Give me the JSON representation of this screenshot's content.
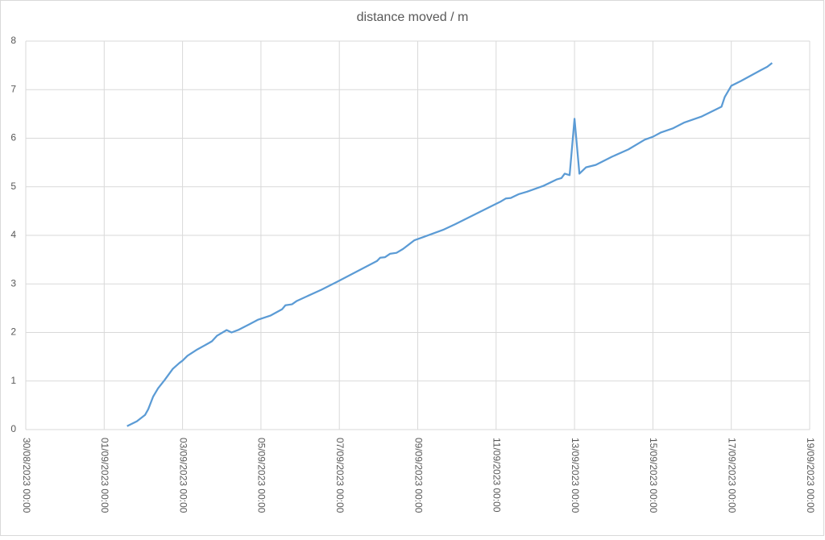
{
  "chart_data": {
    "type": "line",
    "title": "distance moved / m",
    "color": "#5b9bd5",
    "grid": true,
    "x": [
      "2023-09-01 14:00",
      "2023-09-01 20:00",
      "2023-09-02 01:00",
      "2023-09-02 03:00",
      "2023-09-02 06:00",
      "2023-09-02 09:00",
      "2023-09-02 13:00",
      "2023-09-02 18:00",
      "2023-09-02 22:00",
      "2023-09-03 00:00",
      "2023-09-03 03:00",
      "2023-09-03 09:00",
      "2023-09-03 16:00",
      "2023-09-03 18:00",
      "2023-09-03 21:00",
      "2023-09-04 03:00",
      "2023-09-04 06:00",
      "2023-09-04 10:00",
      "2023-09-04 17:00",
      "2023-09-04 22:00",
      "2023-09-05 06:00",
      "2023-09-05 13:00",
      "2023-09-05 15:00",
      "2023-09-05 19:00",
      "2023-09-05 22:00",
      "2023-09-06 13:00",
      "2023-09-06 23:00",
      "2023-09-07 23:00",
      "2023-09-08 01:00",
      "2023-09-08 04:00",
      "2023-09-08 07:00",
      "2023-09-08 11:00",
      "2023-09-08 15:00",
      "2023-09-08 22:00",
      "2023-09-09 03:00",
      "2023-09-09 16:00",
      "2023-09-09 23:00",
      "2023-09-11 03:00",
      "2023-09-11 06:00",
      "2023-09-11 09:00",
      "2023-09-11 14:00",
      "2023-09-11 19:00",
      "2023-09-12 05:00",
      "2023-09-12 13:00",
      "2023-09-12 16:00",
      "2023-09-12 18:00",
      "2023-09-12 21:00",
      "2023-09-13 00:00",
      "2023-09-13 03:00",
      "2023-09-13 07:00",
      "2023-09-13 13:00",
      "2023-09-13 23:00",
      "2023-09-14 09:00",
      "2023-09-14 19:00",
      "2023-09-15 00:00",
      "2023-09-15 05:00",
      "2023-09-15 12:00",
      "2023-09-15 19:00",
      "2023-09-16 06:00",
      "2023-09-16 18:00",
      "2023-09-16 20:00",
      "2023-09-17 00:00",
      "2023-09-17 06:00",
      "2023-09-17 18:00",
      "2023-09-17 22:00",
      "2023-09-18 01:00"
    ],
    "values": [
      0.07,
      0.17,
      0.3,
      0.42,
      0.68,
      0.85,
      1.02,
      1.25,
      1.37,
      1.42,
      1.52,
      1.65,
      1.78,
      1.82,
      1.93,
      2.05,
      2.0,
      2.05,
      2.17,
      2.26,
      2.35,
      2.48,
      2.56,
      2.58,
      2.65,
      2.88,
      3.05,
      3.47,
      3.54,
      3.55,
      3.62,
      3.64,
      3.72,
      3.9,
      3.96,
      4.12,
      4.23,
      4.7,
      4.76,
      4.77,
      4.85,
      4.9,
      5.02,
      5.15,
      5.18,
      5.27,
      5.24,
      6.4,
      5.27,
      5.4,
      5.45,
      5.62,
      5.77,
      5.97,
      6.03,
      6.12,
      6.2,
      6.32,
      6.45,
      6.65,
      6.85,
      7.08,
      7.18,
      7.4,
      7.47,
      7.55
    ],
    "xlim": [
      "2023-08-30 00:00",
      "2023-09-19 00:00"
    ],
    "xticks": [
      {
        "value": "2023-08-30 00:00",
        "label": "30/08/2023 00:00"
      },
      {
        "value": "2023-09-01 00:00",
        "label": "01/09/2023 00:00"
      },
      {
        "value": "2023-09-03 00:00",
        "label": "03/09/2023 00:00"
      },
      {
        "value": "2023-09-05 00:00",
        "label": "05/09/2023 00:00"
      },
      {
        "value": "2023-09-07 00:00",
        "label": "07/09/2023 00:00"
      },
      {
        "value": "2023-09-09 00:00",
        "label": "09/09/2023 00:00"
      },
      {
        "value": "2023-09-11 00:00",
        "label": "11/09/2023 00:00"
      },
      {
        "value": "2023-09-13 00:00",
        "label": "13/09/2023 00:00"
      },
      {
        "value": "2023-09-15 00:00",
        "label": "15/09/2023 00:00"
      },
      {
        "value": "2023-09-17 00:00",
        "label": "17/09/2023 00:00"
      },
      {
        "value": "2023-09-19 00:00",
        "label": "19/09/2023 00:00"
      }
    ],
    "ylim": [
      0,
      8
    ],
    "yticks": [
      0,
      1,
      2,
      3,
      4,
      5,
      6,
      7,
      8
    ]
  }
}
